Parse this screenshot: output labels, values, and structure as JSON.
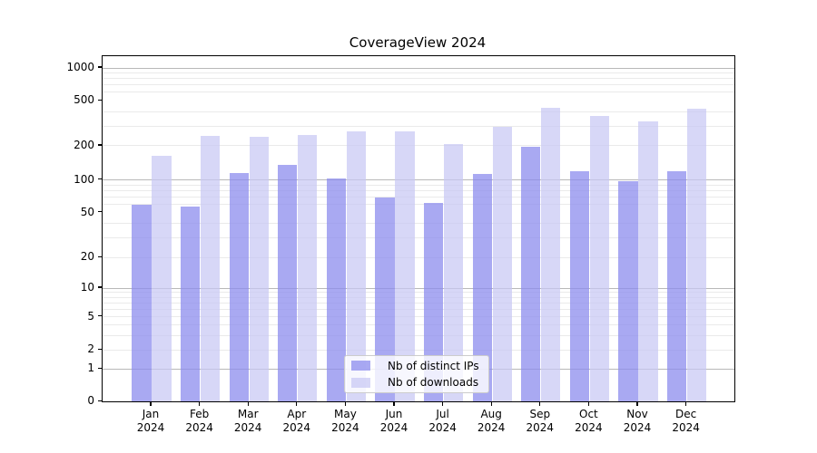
{
  "title": "CoverageView 2024",
  "chart_data": {
    "type": "bar",
    "title": "CoverageView 2024",
    "categories": [
      "Jan 2024",
      "Feb 2024",
      "Mar 2024",
      "Apr 2024",
      "May 2024",
      "Jun 2024",
      "Jul 2024",
      "Aug 2024",
      "Sep 2024",
      "Oct 2024",
      "Nov 2024",
      "Dec 2024"
    ],
    "series": [
      {
        "name": "Nb of distinct IPs",
        "color": "rgba(140,140,238,0.75)",
        "values": [
          59,
          57,
          115,
          136,
          102,
          69,
          61,
          112,
          195,
          120,
          97,
          120
        ]
      },
      {
        "name": "Nb of downloads",
        "color": "rgba(200,200,244,0.72)",
        "values": [
          163,
          245,
          240,
          250,
          268,
          268,
          207,
          295,
          435,
          370,
          332,
          430
        ]
      }
    ],
    "yscale": "symlog",
    "yticks": [
      0,
      1,
      2,
      5,
      10,
      20,
      50,
      100,
      200,
      500,
      1000
    ],
    "ylim": [
      0,
      1300
    ],
    "xlabel": "",
    "ylabel": "",
    "grid": true,
    "legend_position": "lower center",
    "major_grid_values": [
      1,
      10,
      100,
      1000
    ],
    "minor_grid_values": [
      2,
      3,
      4,
      5,
      6,
      7,
      8,
      9,
      20,
      30,
      40,
      60,
      70,
      80,
      90,
      200,
      300,
      400,
      600,
      700,
      800,
      900
    ]
  }
}
